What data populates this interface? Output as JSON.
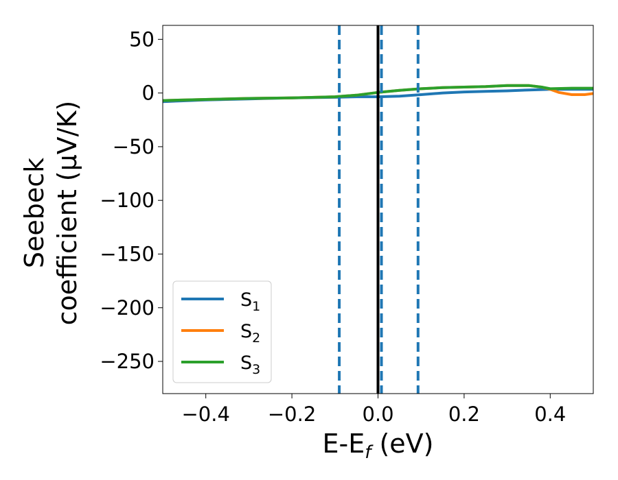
{
  "chart_data": {
    "type": "line",
    "xlabel": {
      "main": "E-E",
      "sub": "f",
      "unit": " (eV)"
    },
    "ylabel": {
      "line1": "Seebeck",
      "line2": "coefficient  (μV/K)"
    },
    "xlim": [
      -0.5,
      0.5
    ],
    "ylim": [
      -280,
      63
    ],
    "xticks": [
      -0.4,
      -0.2,
      0.0,
      0.2,
      0.4
    ],
    "xtick_labels": [
      "−0.4",
      "−0.2",
      "0.0",
      "0.2",
      "0.4"
    ],
    "yticks": [
      50,
      0,
      -50,
      -100,
      -150,
      -200,
      -250
    ],
    "ytick_labels": [
      "50",
      "0",
      "−50",
      "−100",
      "−150",
      "−200",
      "−250"
    ],
    "grid": false,
    "legend_position": "lower-left",
    "fermi_line": {
      "x": 0.0,
      "color": "#000000"
    },
    "dashed_lines": {
      "x": [
        -0.09,
        0.008,
        0.093
      ],
      "color": "#1f77b4"
    },
    "series": [
      {
        "name": "S",
        "sub": "1",
        "color": "#1f77b4",
        "x": [
          -0.5,
          -0.4,
          -0.3,
          -0.2,
          -0.1,
          -0.05,
          0.0,
          0.05,
          0.1,
          0.15,
          0.2,
          0.25,
          0.3,
          0.35,
          0.4,
          0.45,
          0.5
        ],
        "y": [
          -8,
          -6.5,
          -5.5,
          -4.5,
          -4,
          -3.5,
          -3.5,
          -3,
          -1.5,
          0,
          1,
          1.5,
          2,
          2.8,
          3.5,
          3.5,
          3.5
        ]
      },
      {
        "name": "S",
        "sub": "2",
        "color": "#ff7f0e",
        "x": [
          -0.5,
          -0.4,
          -0.3,
          -0.2,
          -0.1,
          -0.05,
          0.0,
          0.05,
          0.1,
          0.15,
          0.2,
          0.25,
          0.3,
          0.35,
          0.38,
          0.4,
          0.42,
          0.45,
          0.48,
          0.5
        ],
        "y": [
          -7,
          -6,
          -5,
          -4.5,
          -3.5,
          -2,
          0.5,
          2.5,
          4,
          5,
          5.5,
          6,
          7,
          7,
          5.5,
          3.5,
          0.5,
          -1.5,
          -1.5,
          -0.5
        ]
      },
      {
        "name": "S",
        "sub": "3",
        "color": "#2ca02c",
        "x": [
          -0.5,
          -0.4,
          -0.3,
          -0.2,
          -0.1,
          -0.05,
          0.0,
          0.05,
          0.1,
          0.15,
          0.2,
          0.25,
          0.3,
          0.35,
          0.38,
          0.4,
          0.45,
          0.5
        ],
        "y": [
          -7,
          -6,
          -5,
          -4.5,
          -3.5,
          -2,
          0.5,
          2.5,
          4,
          5,
          5.5,
          6,
          7,
          7,
          5.5,
          4,
          4.5,
          4.5
        ]
      }
    ]
  }
}
